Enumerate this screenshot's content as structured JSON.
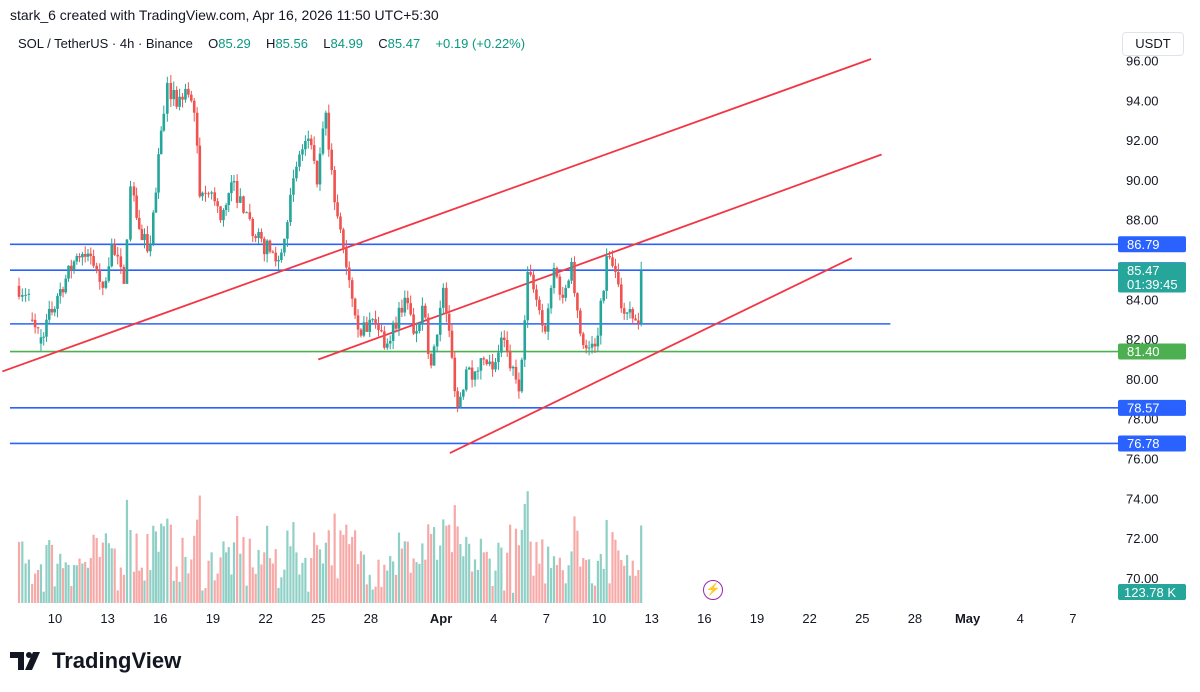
{
  "header": {
    "text": "stark_6 created with TradingView.com, Apr 16, 2026 11:50 UTC+5:30"
  },
  "symbol": {
    "name": "SOL / TetherUS · 4h · Binance",
    "open_label": "O",
    "open": "85.29",
    "high_label": "H",
    "high": "85.56",
    "low_label": "L",
    "low": "84.99",
    "close_label": "C",
    "close": "85.47",
    "change": "+0.19 (+0.22%)"
  },
  "currency": "USDT",
  "brand": {
    "name": "TradingView"
  },
  "colors": {
    "up": "#26a69a",
    "down": "#ef5350",
    "channel": "#f23645",
    "level": "#2962ff",
    "support": "#4caf50",
    "volume_up": "#8fd0c6",
    "volume_down": "#f7a9a7"
  },
  "icons": {
    "brand_logo": "tradingview-logo-icon",
    "alert": "lightning-bolt-icon"
  },
  "chart_data": {
    "type": "candlestick",
    "interval": "4h",
    "ylim": [
      69.5,
      96.7
    ],
    "y_ticks": [
      "96.00",
      "94.00",
      "92.00",
      "90.00",
      "88.00",
      "84.00",
      "82.00",
      "80.00",
      "78.00",
      "76.00",
      "74.00",
      "72.00",
      "70.00"
    ],
    "x_ticks": [
      "10",
      "13",
      "16",
      "19",
      "22",
      "25",
      "28",
      "Apr",
      "4",
      "7",
      "10",
      "13",
      "16",
      "19",
      "22",
      "25",
      "28",
      "May",
      "4",
      "7"
    ],
    "x_tick_days": [
      10,
      13,
      16,
      19,
      22,
      25,
      28,
      32,
      35,
      38,
      41,
      44,
      47,
      50,
      53,
      56,
      59,
      62,
      65,
      68
    ],
    "x_tick_bold": [
      "Apr",
      "May"
    ],
    "bars_start_day": 7.95,
    "bars_per_day": 6,
    "ohlc_anchors": [
      [
        84.7,
        84.3
      ],
      [
        83.0,
        82.6
      ],
      [
        81.8,
        84.2
      ],
      [
        84.2,
        86.2
      ],
      [
        86.2,
        86.2
      ],
      [
        86.2,
        84.6
      ],
      [
        84.6,
        86.8
      ],
      [
        86.8,
        84.8
      ],
      [
        84.8,
        89.7
      ],
      [
        89.7,
        87.0
      ],
      [
        87.0,
        86.8
      ],
      [
        86.8,
        92.5
      ],
      [
        92.5,
        94.9
      ],
      [
        94.9,
        93.7
      ],
      [
        93.7,
        94.6
      ],
      [
        94.6,
        93.4
      ],
      [
        93.4,
        89.2
      ],
      [
        89.2,
        89.4
      ],
      [
        89.4,
        88.0
      ],
      [
        88.0,
        89.9
      ],
      [
        89.9,
        88.4
      ],
      [
        88.4,
        87.1
      ],
      [
        87.1,
        86.0
      ],
      [
        86.0,
        91.3
      ],
      [
        91.3,
        92.1
      ],
      [
        92.1,
        89.8
      ],
      [
        89.8,
        93.4
      ],
      [
        93.4,
        88.9
      ],
      [
        88.9,
        86.6
      ],
      [
        86.6,
        82.2
      ],
      [
        82.2,
        83.0
      ],
      [
        83.0,
        81.8
      ],
      [
        81.8,
        84.1
      ],
      [
        84.1,
        82.3
      ],
      [
        82.3,
        83.7
      ],
      [
        83.7,
        80.7
      ],
      [
        80.7,
        84.6
      ],
      [
        84.6,
        78.6
      ],
      [
        78.6,
        80.5
      ],
      [
        80.5,
        80.4
      ],
      [
        80.4,
        81.0
      ],
      [
        81.0,
        80.5
      ],
      [
        80.5,
        82.1
      ],
      [
        82.1,
        79.4
      ],
      [
        79.4,
        85.4
      ],
      [
        85.4,
        84.0
      ],
      [
        84.0,
        82.4
      ],
      [
        82.4,
        85.6
      ],
      [
        85.6,
        84.1
      ],
      [
        84.1,
        85.9
      ],
      [
        85.9,
        82.3
      ],
      [
        82.3,
        81.6
      ],
      [
        81.6,
        82.2
      ],
      [
        82.2,
        86.2
      ],
      [
        86.2,
        85.4
      ],
      [
        85.4,
        83.3
      ],
      [
        83.3,
        82.8
      ],
      [
        82.8,
        85.47
      ]
    ],
    "ohlc_anchor_days": [
      7.95,
      8.7,
      9.2,
      10.3,
      11.4,
      12.2,
      12.9,
      13.4,
      14.1,
      14.5,
      15.1,
      15.6,
      16.2,
      16.6,
      17.1,
      17.6,
      18.1,
      18.4,
      19.1,
      19.6,
      20.2,
      21.1,
      21.6,
      22.9,
      24.1,
      24.6,
      25.1,
      25.6,
      26.1,
      26.6,
      27.6,
      28.1,
      29.1,
      30.1,
      30.6,
      31.1,
      31.6,
      32.3,
      33.1,
      33.6,
      34.1,
      34.6,
      35.1,
      35.6,
      36.6,
      37.1,
      37.6,
      38.1,
      38.6,
      39.1,
      39.6,
      40.1,
      40.6,
      41.1,
      41.6,
      42.1,
      42.6,
      43.4
    ],
    "price_labels": [
      {
        "value": 86.79,
        "text": "86.79",
        "color": "#2962ff"
      },
      {
        "value": 85.49,
        "text": "85.49",
        "color": "#2962ff"
      },
      {
        "value": 85.47,
        "text": "85.47",
        "subtext": "01:39:45",
        "color": "#26a69a"
      },
      {
        "value": 81.4,
        "text": "81.40",
        "color": "#4caf50"
      },
      {
        "value": 78.57,
        "text": "78.57",
        "color": "#2962ff"
      },
      {
        "value": 76.78,
        "text": "76.78",
        "color": "#2962ff"
      }
    ],
    "volume_label": {
      "text": "123.78 K",
      "color": "#26a69a"
    },
    "horizontal_levels": [
      {
        "value": 86.79,
        "color": "#2962ff",
        "to_day": null
      },
      {
        "value": 85.49,
        "color": "#2962ff",
        "to_day": null
      },
      {
        "value": 82.79,
        "color": "#2962ff",
        "to_day": 57.6
      },
      {
        "value": 81.4,
        "color": "#4caf50",
        "to_day": null
      },
      {
        "value": 78.57,
        "color": "#2962ff",
        "to_day": null
      },
      {
        "value": 76.78,
        "color": "#2962ff",
        "to_day": null
      }
    ],
    "trendlines": [
      {
        "from": [
          7.0,
          80.4
        ],
        "to": [
          56.5,
          96.1
        ],
        "color": "#f23645"
      },
      {
        "from": [
          25.0,
          81.0
        ],
        "to": [
          57.1,
          91.3
        ],
        "color": "#f23645"
      },
      {
        "from": [
          32.5,
          76.3
        ],
        "to": [
          55.4,
          86.1
        ],
        "color": "#f23645"
      }
    ]
  }
}
